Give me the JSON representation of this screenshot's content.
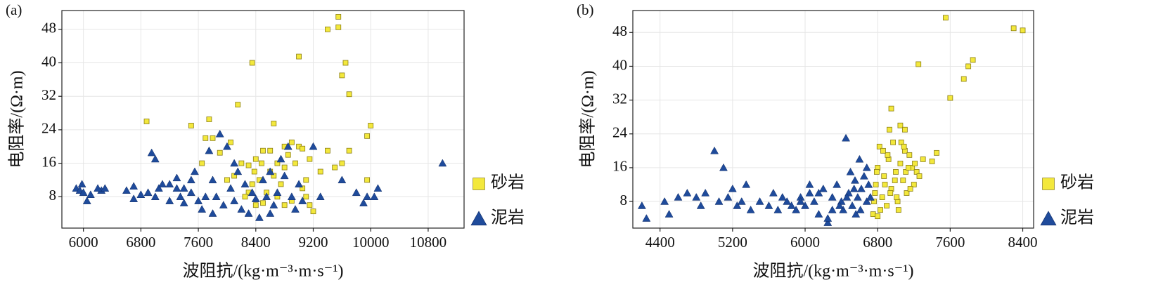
{
  "chart_data": [
    {
      "type": "scatter",
      "label": "(a)",
      "xlabel": "波阻抗/(kg·m⁻³·m·s⁻¹)",
      "ylabel": "电阻率/(Ω·m)",
      "xlim": [
        5700,
        11300
      ],
      "ylim": [
        0.5,
        52.5
      ],
      "xticks": [
        6000,
        6800,
        7600,
        8400,
        9200,
        10000,
        10800
      ],
      "yticks": [
        8,
        16,
        24,
        32,
        40,
        48
      ],
      "grid": true,
      "series": [
        {
          "name": "砂岩",
          "color": "#f3e83c",
          "marker": "square",
          "x": [
            6880,
            7500,
            7750,
            7700,
            7800,
            8150,
            8350,
            8650,
            9000,
            9400,
            9550,
            9550,
            9650,
            9600,
            9700,
            9950,
            10000,
            9950,
            9700,
            9600,
            9500,
            9400,
            9300,
            9200,
            9150,
            9000,
            8900,
            8850,
            8800,
            8700,
            8600,
            8500,
            8400,
            8300,
            8200,
            8100,
            8000,
            8350,
            8450,
            8550,
            8700,
            8900,
            9050,
            9150,
            8400,
            8300,
            8650,
            8750,
            8950,
            9050,
            8800,
            7650,
            8380,
            8480,
            8600,
            9100,
            8050,
            7900,
            9100,
            8250,
            8500,
            8800
          ],
          "values": [
            26,
            25,
            26.5,
            22,
            22,
            30,
            40,
            25.5,
            41.5,
            48,
            51,
            48.5,
            40,
            37,
            32.5,
            22.5,
            25,
            12,
            19,
            16,
            15,
            19,
            14,
            4.5,
            17,
            20,
            21,
            18,
            15,
            16,
            14,
            19,
            17,
            15.5,
            16,
            13,
            12,
            11,
            12,
            9,
            8,
            7,
            10,
            6,
            6,
            9,
            13,
            11,
            16,
            19.5,
            20,
            16,
            14,
            16,
            19,
            12,
            21,
            18.5,
            8,
            8,
            6.5,
            6
          ]
        },
        {
          "name": "泥岩",
          "color": "#1f4b9b",
          "marker": "triangle",
          "x": [
            5900,
            5950,
            6000,
            6050,
            6100,
            5980,
            6250,
            6300,
            6600,
            6700,
            6800,
            6700,
            6900,
            6950,
            7000,
            7050,
            7100,
            7200,
            7300,
            7350,
            7400,
            7500,
            7500,
            7550,
            7600,
            7650,
            7700,
            7750,
            7800,
            7850,
            7900,
            7950,
            8000,
            8050,
            8100,
            8150,
            8200,
            8250,
            8300,
            8350,
            8400,
            8450,
            8500,
            8550,
            8600,
            8650,
            8700,
            8750,
            8800,
            8850,
            8900,
            8950,
            9000,
            9050,
            9200,
            9300,
            9600,
            9800,
            9900,
            9950,
            10100,
            10050,
            11000,
            7200,
            7400,
            7000,
            7800,
            8100,
            8600,
            6200,
            7300
          ],
          "values": [
            10,
            9.5,
            9,
            7,
            8.5,
            11,
            9.5,
            10,
            9.5,
            7.5,
            8.5,
            10.5,
            9,
            18.5,
            17,
            10,
            11,
            11,
            10,
            8,
            10,
            12,
            9,
            14,
            7,
            5,
            8,
            19,
            12,
            8,
            23,
            6,
            20,
            10,
            7,
            14,
            5,
            11,
            4,
            9,
            7.5,
            3,
            12,
            8,
            14,
            6,
            9,
            17,
            13,
            20,
            8,
            5,
            11,
            7,
            20,
            8,
            12,
            9,
            6.5,
            8,
            10,
            8,
            16,
            7,
            6.5,
            8,
            4,
            16,
            4,
            10,
            12.5
          ]
        }
      ]
    },
    {
      "type": "scatter",
      "label": "(b)",
      "xlabel": "波阻抗/(kg·m⁻³·m·s⁻¹)",
      "ylabel": "电阻率/(Ω·m)",
      "xlim": [
        4100,
        8520
      ],
      "ylim": [
        1.7,
        53.2
      ],
      "xticks": [
        4400,
        5200,
        6000,
        6800,
        7600,
        8400
      ],
      "yticks": [
        8,
        16,
        24,
        32,
        40,
        48
      ],
      "grid": true,
      "series": [
        {
          "name": "砂岩",
          "color": "#f3e83c",
          "marker": "square",
          "x": [
            7250,
            7550,
            7600,
            7750,
            7800,
            7850,
            8300,
            8400,
            6950,
            7050,
            7100,
            7450,
            7400,
            6750,
            6780,
            6800,
            6820,
            6850,
            6870,
            6900,
            6920,
            6950,
            6970,
            7000,
            7020,
            7050,
            7080,
            7100,
            7120,
            7150,
            7180,
            7200,
            7230,
            7260,
            7300,
            6760,
            6790,
            6830,
            6880,
            6910,
            6940,
            6990,
            7030,
            7060,
            7110,
            7160,
            7210,
            6770,
            6860,
            7010,
            7090,
            6800,
            6930,
            7140
          ],
          "values": [
            40.5,
            51.5,
            32.5,
            37,
            40,
            41.5,
            49,
            48.5,
            30,
            26,
            25,
            19.5,
            17.5,
            5,
            12,
            16,
            21,
            9,
            14,
            7,
            18,
            11,
            22,
            15,
            8,
            17,
            13,
            20,
            10,
            19,
            16,
            12,
            15,
            14,
            18,
            8,
            15,
            6,
            12,
            19,
            10,
            13,
            6,
            22,
            15,
            11,
            17,
            10,
            20,
            9,
            21,
            4.5,
            25,
            16
          ]
        },
        {
          "name": "泥岩",
          "color": "#1f4b9b",
          "marker": "triangle",
          "x": [
            4200,
            4250,
            4450,
            4500,
            4600,
            4700,
            4800,
            4850,
            4900,
            5000,
            5050,
            5100,
            5150,
            5200,
            5250,
            5300,
            5350,
            5400,
            5500,
            5600,
            5650,
            5700,
            5750,
            5800,
            5850,
            5900,
            5950,
            6000,
            6050,
            6100,
            6150,
            6200,
            6250,
            6300,
            6350,
            6400,
            6420,
            6450,
            6480,
            6500,
            6520,
            6550,
            6580,
            6600,
            6620,
            6650,
            6680,
            6700,
            6720,
            6560,
            6380,
            6460,
            6540,
            6610,
            6680,
            6150,
            6300,
            5950,
            6050,
            6250
          ],
          "values": [
            7,
            4,
            8,
            5,
            9,
            10,
            9,
            7,
            10,
            20,
            8,
            16,
            9,
            11,
            7,
            8,
            12,
            6,
            8,
            7,
            10,
            6,
            9,
            8,
            7,
            6,
            9,
            7,
            10,
            8,
            5,
            11,
            3,
            9,
            12,
            8,
            6,
            23,
            10,
            15,
            7,
            13,
            9,
            18,
            11,
            14,
            8,
            12,
            9,
            5,
            7,
            9,
            11,
            6,
            16,
            10,
            6,
            8,
            12,
            4
          ]
        }
      ]
    }
  ]
}
